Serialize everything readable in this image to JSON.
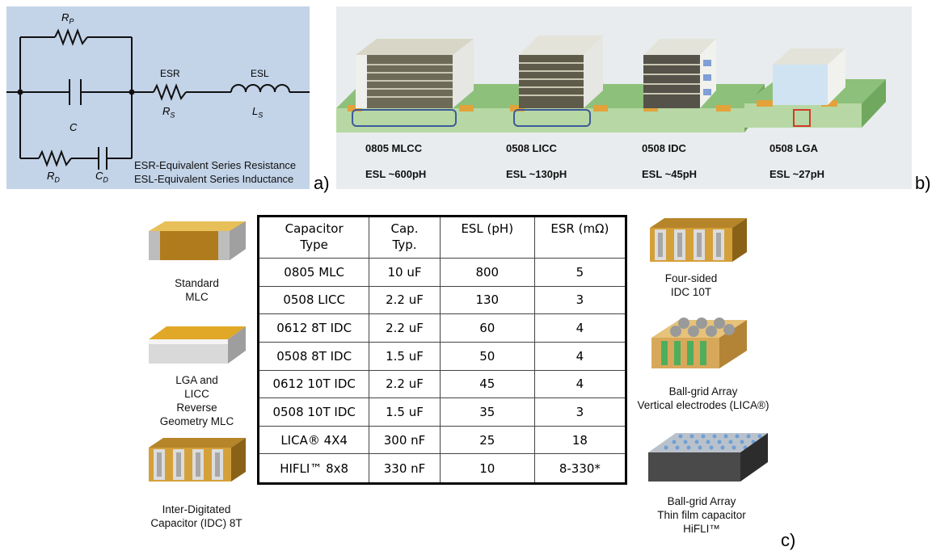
{
  "panel_a": {
    "label": "a)",
    "rp": "R",
    "rp_sub": "P",
    "c": "C",
    "rd": "R",
    "rd_sub": "D",
    "cd": "C",
    "cd_sub": "D",
    "esr": "ESR",
    "rs": "R",
    "rs_sub": "S",
    "esl": "ESL",
    "ls": "L",
    "ls_sub": "S",
    "note_esr": "ESR-Equivalent Series Resistance",
    "note_esl": "ESL-Equivalent Series Inductance"
  },
  "panel_b": {
    "label": "b)",
    "parts": [
      {
        "name": "0805 MLCC",
        "esl": "ESL ~600pH"
      },
      {
        "name": "0508 LICC",
        "esl": "ESL ~130pH"
      },
      {
        "name": "0508 IDC",
        "esl": "ESL ~45pH"
      },
      {
        "name": "0508 LGA",
        "esl": "ESL ~27pH"
      }
    ]
  },
  "panel_c": {
    "label": "c)",
    "headers": [
      "Capacitor Type",
      "Cap. Typ.",
      "ESL (pH)",
      "ESR (mΩ)"
    ],
    "rows": [
      [
        "0805  MLC",
        "10 uF",
        "800",
        "5"
      ],
      [
        "0508 LICC",
        "2.2 uF",
        "130",
        "3"
      ],
      [
        "0612 8T IDC",
        "2.2 uF",
        "60",
        "4"
      ],
      [
        "0508 8T IDC",
        "1.5 uF",
        "50",
        "4"
      ],
      [
        "0612 10T IDC",
        "2.2 uF",
        "45",
        "4"
      ],
      [
        "0508 10T IDC",
        "1.5 uF",
        "35",
        "3"
      ],
      [
        "LICA® 4X4",
        "300 nF",
        "25",
        "18"
      ],
      [
        "HIFLI™ 8x8",
        "330 nF",
        "10",
        "8-330*"
      ]
    ],
    "left_labels": [
      "Standard\nMLC",
      "LGA and\nLICC\nReverse\nGeometry MLC",
      "Inter-Digitated\nCapacitor (IDC) 8T"
    ],
    "right_labels": [
      "Four-sided\nIDC 10T",
      "Ball-grid Array\nVertical electrodes (LICA®)",
      "Ball-grid Array\nThin film capacitor\nHiFLI™"
    ]
  }
}
